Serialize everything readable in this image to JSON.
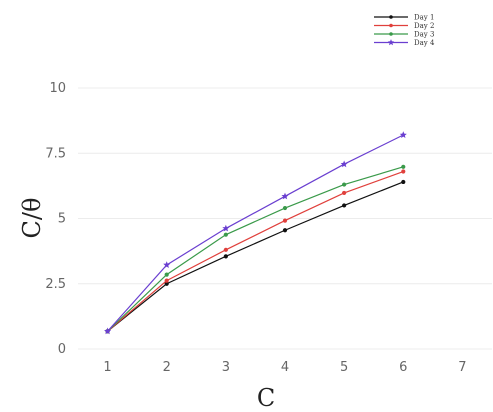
{
  "chart_data": {
    "type": "line",
    "xlabel": "C",
    "ylabel": "C/θ",
    "xlim": [
      0.5,
      7.5
    ],
    "ylim": [
      0,
      10
    ],
    "x_ticks": [
      "1",
      "2",
      "3",
      "4",
      "5",
      "6",
      "7"
    ],
    "y_ticks": [
      "0",
      "2.5",
      "5",
      "7.5",
      "10"
    ],
    "grid": "horizontal",
    "legend_position": "top-right",
    "x": [
      1,
      2,
      3,
      4,
      5,
      6
    ],
    "series": [
      {
        "name": "Day 1",
        "color": "#111111",
        "marker": "circle",
        "values": [
          0.68,
          2.5,
          3.55,
          4.55,
          5.5,
          6.4
        ]
      },
      {
        "name": "Day 2",
        "color": "#e0403c",
        "marker": "circle",
        "values": [
          0.68,
          2.62,
          3.8,
          4.92,
          5.98,
          6.8
        ]
      },
      {
        "name": "Day 3",
        "color": "#3a9a4a",
        "marker": "circle",
        "values": [
          0.68,
          2.85,
          4.38,
          5.4,
          6.3,
          6.98
        ]
      },
      {
        "name": "Day 4",
        "color": "#6a3fd0",
        "marker": "star",
        "values": [
          0.68,
          3.22,
          4.62,
          5.85,
          7.08,
          8.2
        ]
      }
    ]
  }
}
